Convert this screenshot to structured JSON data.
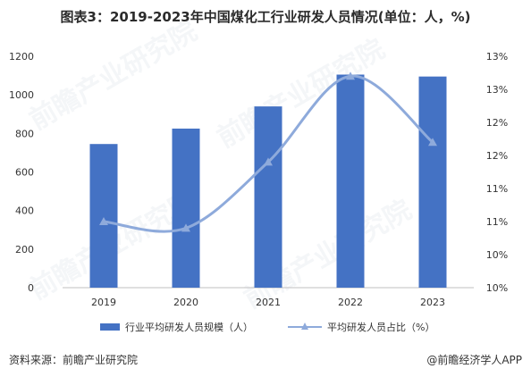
{
  "title": "图表3：2019-2023年中国煤化工行业研发人员情况(单位：人，%)",
  "colors": {
    "bar": "#4472c4",
    "line": "#8eaadb",
    "axis": "#bfbfbf",
    "text": "#333333"
  },
  "chart_data": {
    "type": "bar",
    "categories": [
      "2019",
      "2020",
      "2021",
      "2022",
      "2023"
    ],
    "series": [
      {
        "name": "行业平均研发人员规模（人）",
        "type": "bar",
        "axis": "left",
        "values": [
          745,
          825,
          940,
          1105,
          1095
        ]
      },
      {
        "name": "平均研发人员占比（%）",
        "type": "line",
        "axis": "right",
        "values": [
          11.0,
          10.9,
          11.9,
          13.2,
          12.2
        ]
      }
    ],
    "ylim": [
      0,
      1200
    ],
    "y_ticks": [
      "0",
      "200",
      "400",
      "600",
      "800",
      "1000",
      "1200"
    ],
    "y2lim": [
      10,
      13.5
    ],
    "y2_ticks": [
      "10%",
      "10%",
      "11%",
      "11%",
      "12%",
      "12%",
      "13%",
      "13%"
    ],
    "grid": false,
    "legend": "bottom"
  },
  "watermark": "前瞻产业研究院",
  "footer": {
    "source": "资料来源：前瞻产业研究院",
    "brand": "@前瞻经济学人APP"
  }
}
